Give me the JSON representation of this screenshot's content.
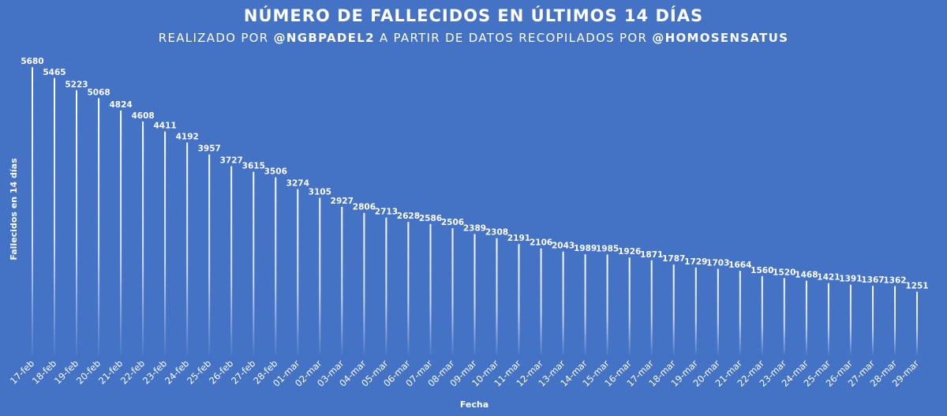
{
  "colors": {
    "background": "#4472C4",
    "text": "#FFFFFF",
    "bar": "#FFFFFF"
  },
  "header": {
    "title": "NÚMERO DE FALLECIDOS EN ÚLTIMOS 14 DÍAS",
    "subtitle_parts": [
      "REALIZADO POR ",
      "@NGBPADEL2",
      " A PARTIR DE DATOS RECOPILADOS POR ",
      "@HOMOSENSATUS"
    ]
  },
  "chart_data": {
    "type": "bar",
    "title": "NÚMERO DE FALLECIDOS EN ÚLTIMOS 14 DÍAS",
    "xlabel": "Fecha",
    "ylabel": "Fallecidos en 14 días",
    "ylim": [
      0,
      6000
    ],
    "grid": false,
    "legend": "none",
    "data_labels": true,
    "categories": [
      "17-feb",
      "18-feb",
      "19-feb",
      "20-feb",
      "21-feb",
      "22-feb",
      "23-feb",
      "24-feb",
      "25-feb",
      "26-feb",
      "27-feb",
      "28-feb",
      "01-mar",
      "02-mar",
      "03-mar",
      "04-mar",
      "05-mar",
      "06-mar",
      "07-mar",
      "08-mar",
      "09-mar",
      "10-mar",
      "11-mar",
      "12-mar",
      "13-mar",
      "14-mar",
      "15-mar",
      "16-mar",
      "17-mar",
      "18-mar",
      "19-mar",
      "20-mar",
      "21-mar",
      "22-mar",
      "23-mar",
      "24-mar",
      "25-mar",
      "26-mar",
      "27-mar",
      "28-mar",
      "29-mar"
    ],
    "values": [
      5680,
      5465,
      5223,
      5068,
      4824,
      4608,
      4411,
      4192,
      3957,
      3727,
      3615,
      3506,
      3274,
      3105,
      2927,
      2806,
      2713,
      2628,
      2586,
      2506,
      2389,
      2308,
      2191,
      2106,
      2043,
      1989,
      1985,
      1926,
      1871,
      1787,
      1729,
      1703,
      1664,
      1560,
      1520,
      1468,
      1421,
      1391,
      1367,
      1362,
      1251
    ]
  }
}
